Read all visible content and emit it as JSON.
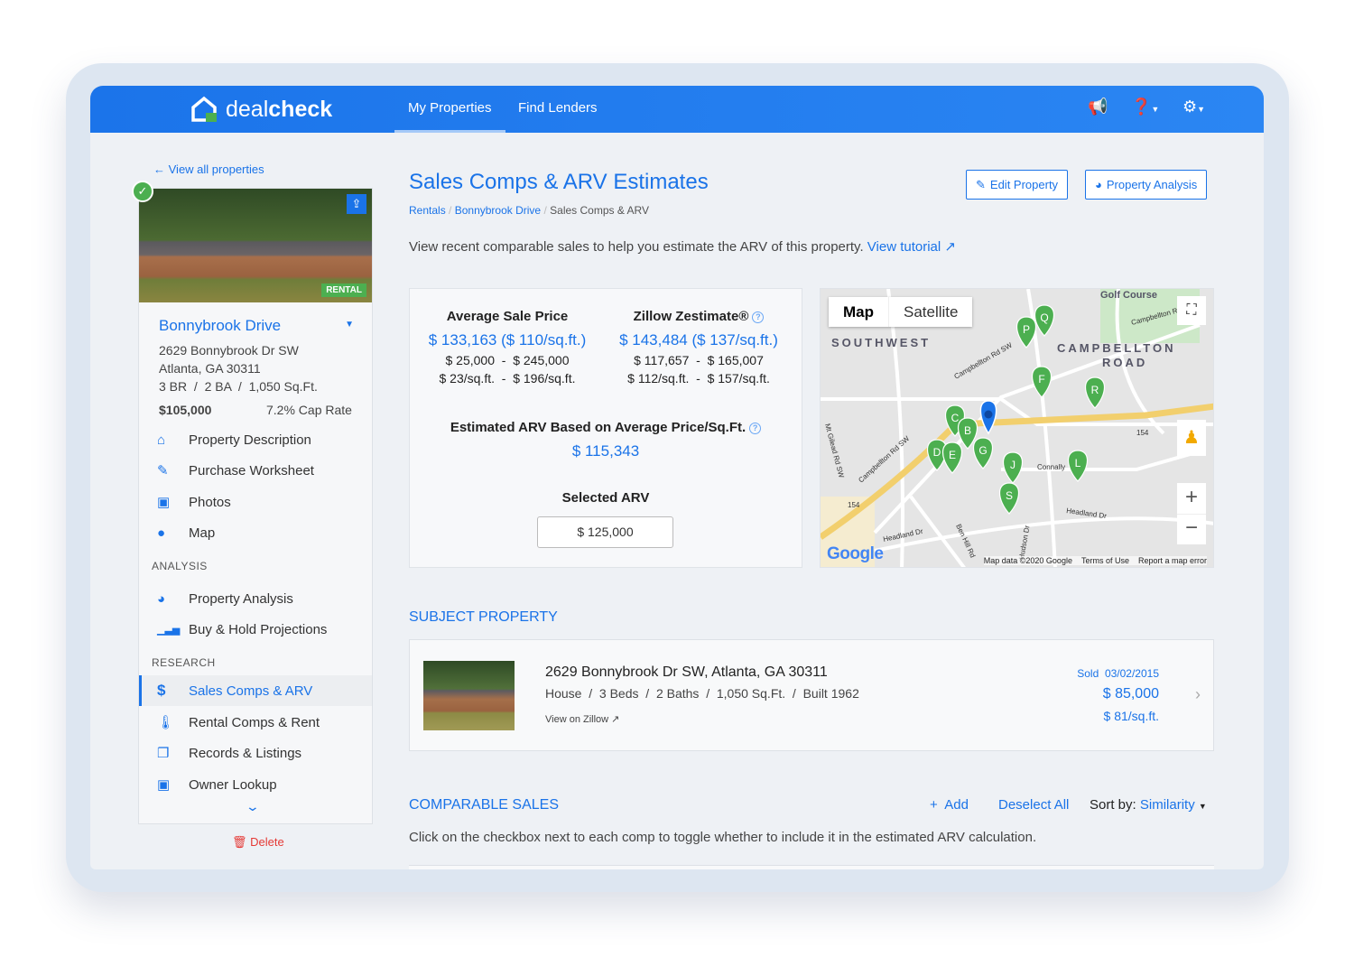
{
  "app": {
    "brand_light": "deal",
    "brand_bold": "check",
    "accent": "#1a73e8",
    "success": "#4caf50",
    "danger": "#e53935"
  },
  "nav": {
    "links": [
      {
        "label": "My Properties",
        "active": true
      },
      {
        "label": "Find Lenders",
        "active": false
      }
    ],
    "icons": [
      "megaphone-icon",
      "help-icon",
      "gear-icon"
    ]
  },
  "sidebar": {
    "back_label": "View all properties",
    "badge": "RENTAL",
    "property_name": "Bonnybrook Drive",
    "address_line1": "2629 Bonnybrook Dr SW",
    "address_line2": "Atlanta, GA 30311",
    "specs": "3 BR  /  2 BA  /  1,050 Sq.Ft.",
    "price": "$105,000",
    "cap_rate": "7.2% Cap Rate",
    "items": [
      {
        "label": "Property Description",
        "icon": "home-icon"
      },
      {
        "label": "Purchase Worksheet",
        "icon": "pencil-icon"
      },
      {
        "label": "Photos",
        "icon": "photos-icon"
      },
      {
        "label": "Map",
        "icon": "map-pin-icon"
      }
    ],
    "analysis_header": "ANALYSIS",
    "analysis_items": [
      {
        "label": "Property Analysis",
        "icon": "pie-chart-icon"
      },
      {
        "label": "Buy & Hold Projections",
        "icon": "bar-chart-icon"
      }
    ],
    "research_header": "RESEARCH",
    "research_items": [
      {
        "label": "Sales Comps & ARV",
        "icon": "dollar-icon",
        "active": true
      },
      {
        "label": "Rental Comps & Rent",
        "icon": "thermometer-icon"
      },
      {
        "label": "Records & Listings",
        "icon": "documents-icon"
      },
      {
        "label": "Owner Lookup",
        "icon": "contact-book-icon"
      }
    ],
    "delete_label": "Delete"
  },
  "page": {
    "title": "Sales Comps & ARV Estimates",
    "breadcrumb": [
      "Rentals",
      "Bonnybrook Drive",
      "Sales Comps & ARV"
    ],
    "edit_button": "Edit Property",
    "analysis_button": "Property Analysis",
    "intro": "View recent comparable sales to help you estimate the ARV of this property.",
    "tutorial_link": "View tutorial"
  },
  "summary": {
    "avg_label": "Average Sale Price",
    "avg_value": "$ 133,163 ($ 110/sq.ft.)",
    "avg_range": "$ 25,000  -  $ 245,000",
    "avg_range_sqft": "$ 23/sq.ft.  -  $ 196/sq.ft.",
    "zillow_label": "Zillow Zestimate®",
    "zillow_value": "$ 143,484 ($ 137/sq.ft.)",
    "zillow_range": "$ 117,657  -  $ 165,007",
    "zillow_range_sqft": "$ 112/sq.ft.  -  $ 157/sq.ft.",
    "est_label": "Estimated ARV Based on Average Price/Sq.Ft.",
    "est_value": "$ 115,343",
    "selected_label": "Selected ARV",
    "selected_value": "$ 125,000"
  },
  "map": {
    "tabs": [
      "Map",
      "Satellite"
    ],
    "active_tab": "Map",
    "area_labels": [
      "SOUTHWEST",
      "CAMPBELLTON",
      "ROAD",
      "Golf Course"
    ],
    "road_labels": [
      "Campbellton Rd SW",
      "Campbellton Rd SW",
      "Campbellton Rd",
      "Mt Gilead Rd SW",
      "Headland Dr",
      "Headland Dr",
      "Ben Hill Rd",
      "Connally",
      "Hudson Dr",
      "154",
      "154"
    ],
    "markers": [
      "P",
      "Q",
      "F",
      "R",
      "C",
      "B",
      "G",
      "D",
      "E",
      "J",
      "L",
      "S"
    ],
    "footer": [
      "Map data ©2020 Google",
      "Terms of Use",
      "Report a map error"
    ],
    "logo": "Google"
  },
  "subject": {
    "header": "SUBJECT PROPERTY",
    "address": "2629 Bonnybrook Dr SW, Atlanta, GA 30311",
    "details": "House  /  3 Beds  /  2 Baths  /  1,050 Sq.Ft.  /  Built 1962",
    "zillow_link": "View on Zillow",
    "sold_label": "Sold",
    "sold_date": "03/02/2015",
    "price": "$ 85,000",
    "price_sqft": "$ 81/sq.ft."
  },
  "comps": {
    "header": "COMPARABLE SALES",
    "add": "Add",
    "deselect": "Deselect All",
    "sort_label": "Sort by:",
    "sort_value": "Similarity",
    "hint": "Click on the checkbox next to each comp to toggle whether to include it in the estimated ARV calculation."
  }
}
